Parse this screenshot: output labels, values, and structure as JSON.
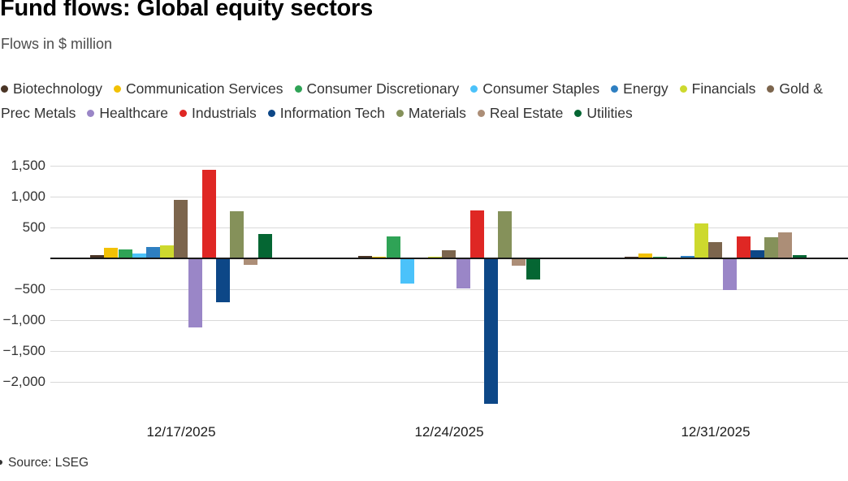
{
  "title": "Fund flows: Global equity sectors",
  "subtitle": "Flows in $ million",
  "source": "Source: LSEG",
  "chart_data": {
    "type": "bar",
    "title": "Fund flows: Global equity sectors",
    "subtitle": "Flows in $ million",
    "xlabel": "",
    "ylabel": "Flows in $ million",
    "grid": true,
    "legend_position": "top",
    "ylim": [
      -2450,
      1650
    ],
    "categories": [
      "12/17/2025",
      "12/24/2025",
      "12/31/2025"
    ],
    "y_ticks": [
      {
        "value": 1500,
        "label": "1,500"
      },
      {
        "value": 1000,
        "label": "1,000"
      },
      {
        "value": 500,
        "label": "500"
      },
      {
        "value": 0,
        "label": ""
      },
      {
        "value": -500,
        "label": "−500"
      },
      {
        "value": -1000,
        "label": "−1,000"
      },
      {
        "value": -1500,
        "label": "−1,500"
      },
      {
        "value": -2000,
        "label": "−2,000"
      }
    ],
    "series": [
      {
        "name": "Biotechnology",
        "color": "#4a3526",
        "values": [
          50,
          40,
          30
        ]
      },
      {
        "name": "Communication Services",
        "color": "#f2c105",
        "values": [
          175,
          20,
          75
        ]
      },
      {
        "name": "Consumer Discretionary",
        "color": "#2fa356",
        "values": [
          150,
          360,
          25
        ]
      },
      {
        "name": "Consumer Staples",
        "color": "#4bc2fa",
        "values": [
          85,
          -400,
          15
        ]
      },
      {
        "name": "Energy",
        "color": "#2e7fc1",
        "values": [
          190,
          5,
          35
        ]
      },
      {
        "name": "Financials",
        "color": "#cdd92e",
        "values": [
          210,
          25,
          570
        ]
      },
      {
        "name": "Gold & Prec Metals",
        "color": "#7c654d",
        "values": [
          950,
          125,
          265
        ]
      },
      {
        "name": "Healthcare",
        "color": "#9a86c7",
        "values": [
          -1100,
          -470,
          -505
        ]
      },
      {
        "name": "Industrials",
        "color": "#df2724",
        "values": [
          1430,
          775,
          350
        ]
      },
      {
        "name": "Information Tech",
        "color": "#0d4787",
        "values": [
          -700,
          -2340,
          135
        ]
      },
      {
        "name": "Materials",
        "color": "#85915a",
        "values": [
          760,
          760,
          345
        ]
      },
      {
        "name": "Real Estate",
        "color": "#ac8e77",
        "values": [
          -90,
          -110,
          425
        ]
      },
      {
        "name": "Utilities",
        "color": "#056633",
        "values": [
          390,
          -330,
          50
        ]
      }
    ]
  },
  "colors": {
    "background": "#ffffff",
    "grid": "#d9d9d9",
    "zero_line": "#1a1a1a",
    "axis_text": "#333333",
    "subtitle_text": "#4c4c4c"
  }
}
